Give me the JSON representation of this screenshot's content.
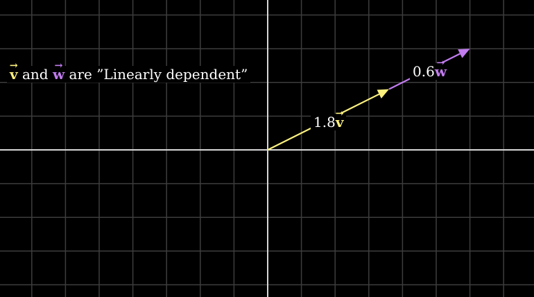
{
  "title": {
    "v_symbol": "v",
    "connector": "and",
    "w_symbol": "w",
    "statement": "are ”Linearly dependent”"
  },
  "vectors": {
    "v_scaled": {
      "coefficient": "1.8",
      "symbol": "v",
      "x": 3.6,
      "y": 1.8,
      "color": "#fcf07e"
    },
    "w_scaled": {
      "coefficient": "0.6",
      "symbol": "w",
      "x": 2.4,
      "y": 1.2,
      "color": "#c27cf0"
    }
  },
  "colors": {
    "background": "#000000",
    "grid": "#3d3d3d",
    "axes": "#d8d8d8",
    "v": "#fcf07e",
    "w": "#c27cf0"
  },
  "arrow_symbol": "→"
}
